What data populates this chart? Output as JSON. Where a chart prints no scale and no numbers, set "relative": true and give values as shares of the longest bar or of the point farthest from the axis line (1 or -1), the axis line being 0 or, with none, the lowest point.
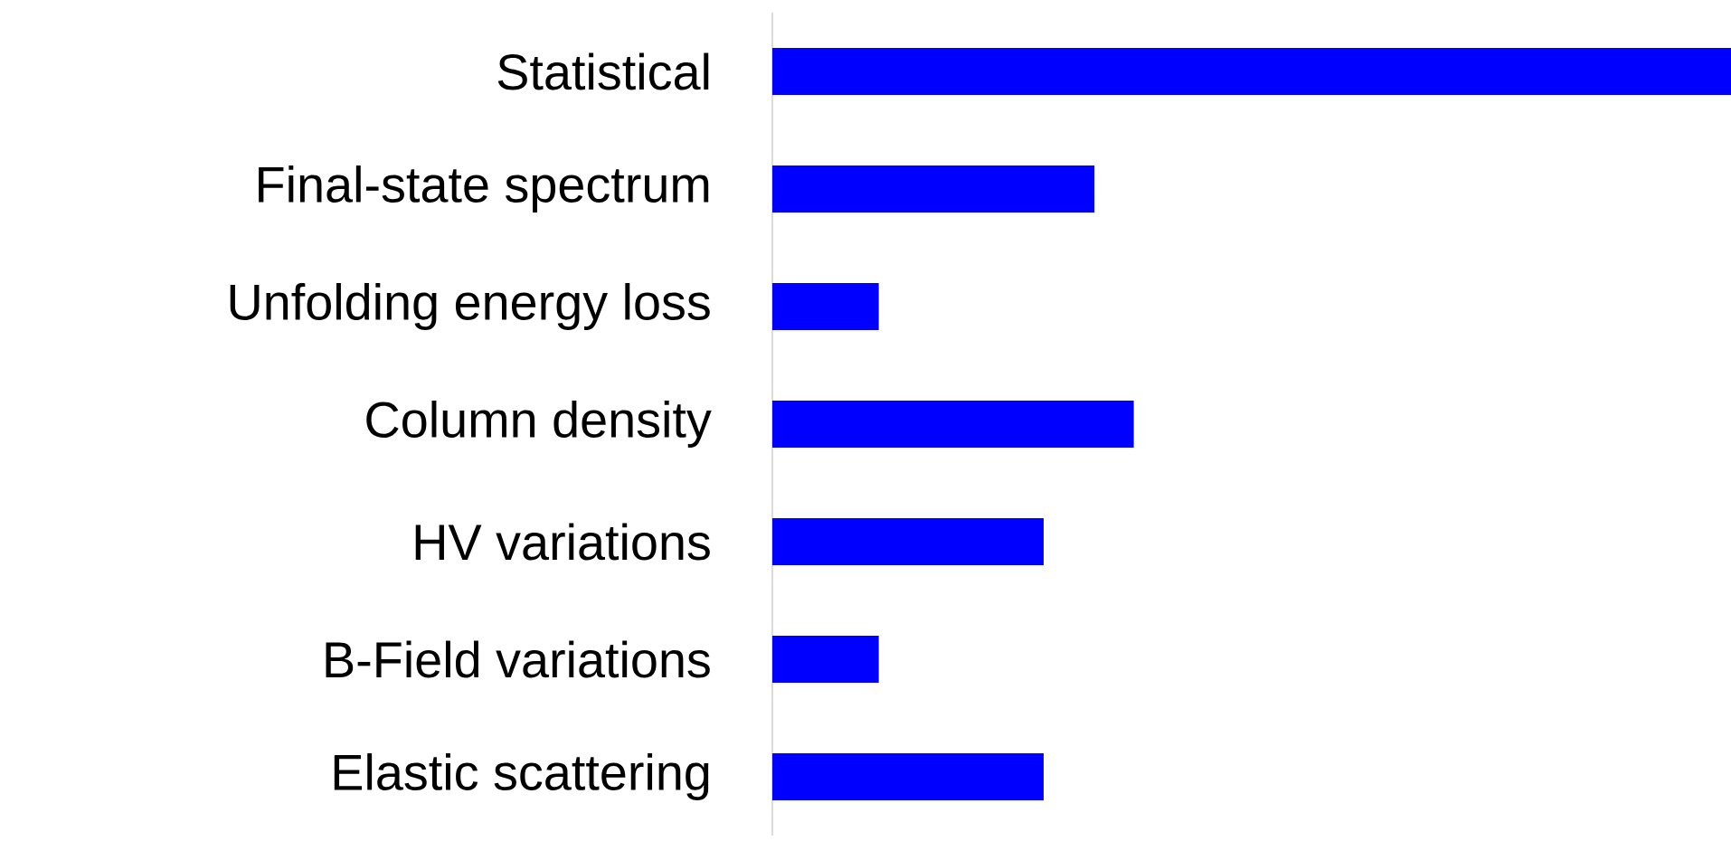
{
  "chart_data": {
    "type": "bar",
    "orientation": "horizontal",
    "relative": true,
    "color": "#0000ff",
    "categories": [
      "Statistical",
      "Final-state spectrum",
      "Unfolding energy loss",
      "Column density",
      "HV variations",
      "B-Field variations",
      "Elastic scattering"
    ],
    "values": [
      1,
      0.336,
      0.111,
      0.377,
      0.283,
      0.111,
      0.283
    ]
  }
}
